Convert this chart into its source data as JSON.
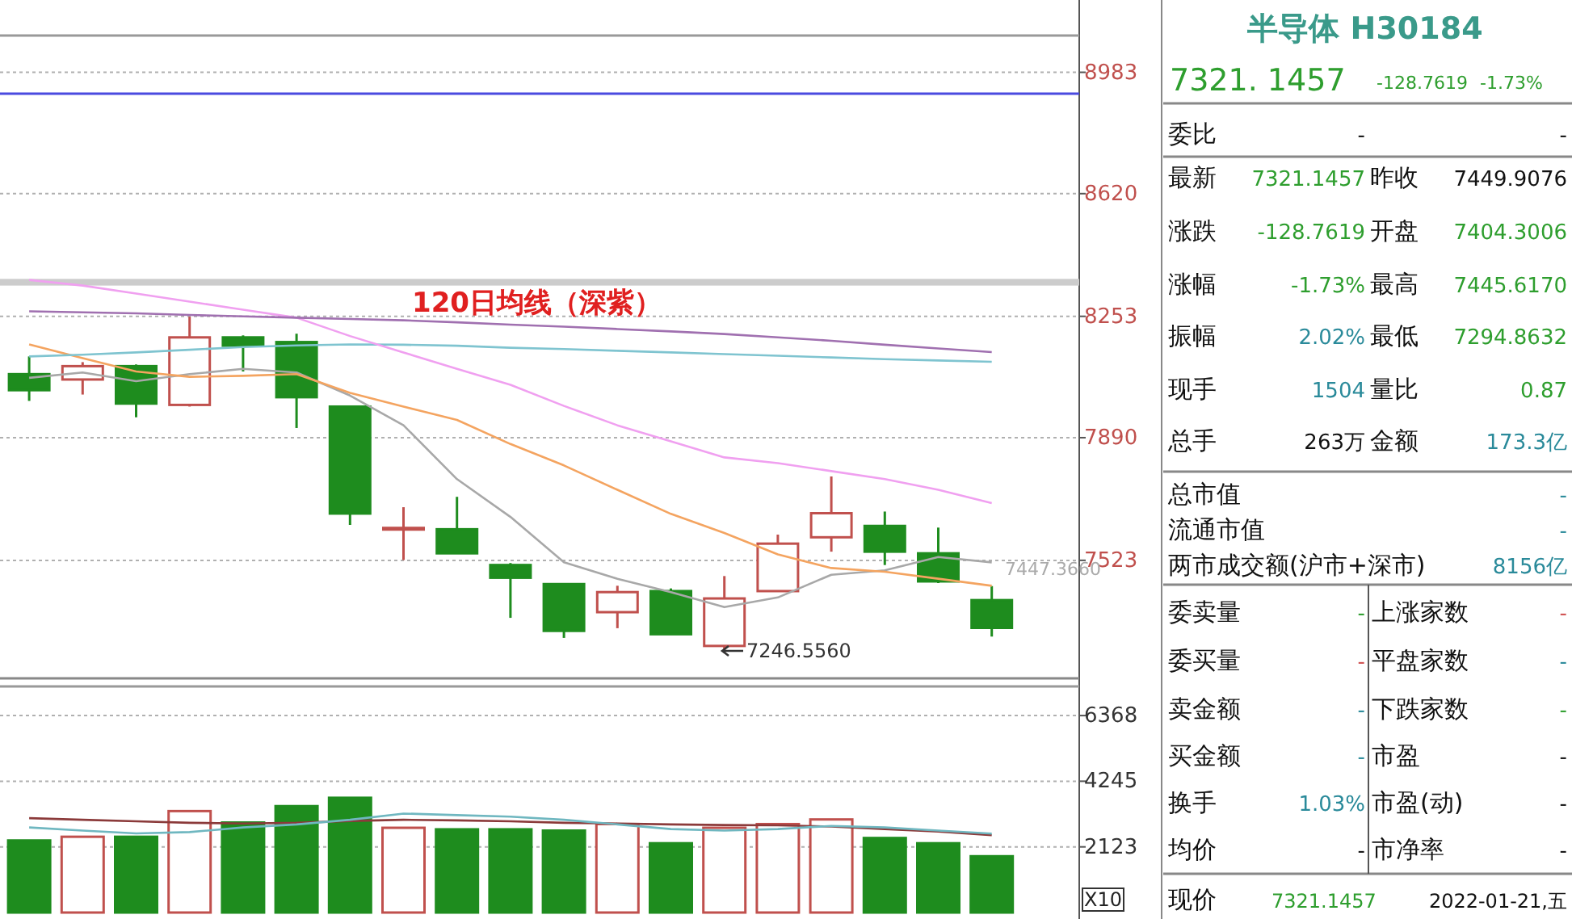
{
  "chart_data": [
    {
      "type": "candlestick",
      "categories": [
        null,
        null,
        null,
        null,
        null,
        null,
        null,
        null,
        null,
        null,
        null,
        null,
        null,
        null,
        null,
        null,
        null,
        null,
        null
      ],
      "ohlc": [
        [
          8080,
          8133,
          8000,
          8032
        ],
        [
          8064,
          8116,
          8019,
          8104
        ],
        [
          8104,
          8109,
          7951,
          7992
        ],
        [
          7988,
          8252,
          7983,
          8190
        ],
        [
          8190,
          8196,
          8088,
          8165
        ],
        [
          8176,
          8201,
          7919,
          8011
        ],
        [
          7983,
          7983,
          7629,
          7663
        ],
        [
          7618,
          7682,
          7524,
          7620
        ],
        [
          7616,
          7713,
          7542,
          7544
        ],
        [
          7509,
          7515,
          7351,
          7471
        ],
        [
          7452,
          7452,
          7291,
          7312
        ],
        [
          7368,
          7447,
          7320,
          7428
        ],
        [
          7431,
          7439,
          7302,
          7302
        ],
        [
          7267,
          7476,
          7246.556,
          7409
        ],
        [
          7431,
          7600,
          7431,
          7573
        ],
        [
          7592,
          7774,
          7549,
          7664
        ],
        [
          7626,
          7669,
          7509,
          7549
        ],
        [
          7544,
          7621,
          7455,
          7460
        ],
        [
          7404,
          7446,
          7295,
          7321
        ]
      ],
      "colors": [
        "#1e8c1e",
        "#c0504d",
        "#1e8c1e",
        "#c0504d",
        "#1e8c1e",
        "#1e8c1e",
        "#1e8c1e",
        "#c0504d",
        "#1e8c1e",
        "#1e8c1e",
        "#1e8c1e",
        "#c0504d",
        "#1e8c1e",
        "#c0504d",
        "#c0504d",
        "#c0504d",
        "#1e8c1e",
        "#1e8c1e",
        "#1e8c1e"
      ],
      "series": [
        {
          "type": "line",
          "color": "#a8a8a8",
          "values": [
            8069,
            8085,
            8059,
            8080,
            8096,
            8085,
            8016,
            7927,
            7766,
            7653,
            7517,
            7468,
            7428,
            7383,
            7412,
            7480,
            7493,
            7533,
            7517
          ]
        },
        {
          "type": "line",
          "color": "#f4a460",
          "values": [
            8169,
            8128,
            8088,
            8072,
            8075,
            8080,
            8024,
            7983,
            7943,
            7871,
            7807,
            7734,
            7662,
            7605,
            7541,
            7500,
            7489,
            7468,
            7447
          ]
        },
        {
          "type": "line",
          "color": "#7fc4d0",
          "values": [
            8133,
            8138,
            8145,
            8153,
            8161,
            8166,
            8169,
            8168,
            8165,
            8159,
            8155,
            8150,
            8145,
            8140,
            8135,
            8130,
            8125,
            8121,
            8117
          ]
        },
        {
          "type": "line",
          "color": "#f0a0f0",
          "values": [
            8362,
            8345,
            8321,
            8297,
            8273,
            8249,
            8194,
            8145,
            8096,
            8048,
            7985,
            7927,
            7879,
            7831,
            7814,
            7790,
            7766,
            7734,
            7694
          ]
        },
        {
          "type": "line",
          "color": "#a070b0",
          "values": [
            8268,
            8265,
            8262,
            8257,
            8253,
            8249,
            8245,
            8241,
            8235,
            8228,
            8222,
            8215,
            8208,
            8200,
            8190,
            8180,
            8168,
            8157,
            8146
          ]
        }
      ],
      "ylim": [
        7170,
        9093
      ],
      "yticks": [
        7523,
        7890,
        8253,
        8620,
        8983
      ],
      "grid": "y",
      "tick_labels": "y",
      "ref_lines": [
        {
          "axis": "y",
          "value": 8919,
          "color": "#4a4ae0"
        }
      ],
      "bands": [
        {
          "axis": "y",
          "from": 8345,
          "to": 8365,
          "color": "#cccccc"
        }
      ],
      "annotations": [
        "120日均线（深紫）",
        "7246.5560",
        "7447.3660"
      ]
    },
    {
      "type": "bar",
      "categories": [
        null,
        null,
        null,
        null,
        null,
        null,
        null,
        null,
        null,
        null,
        null,
        null,
        null,
        null,
        null,
        null,
        null,
        null,
        null
      ],
      "values": [
        2330,
        2450,
        2450,
        3280,
        2910,
        3440,
        3710,
        2740,
        2690,
        2690,
        2650,
        2860,
        2240,
        2740,
        2860,
        3010,
        2410,
        2240,
        1820
      ],
      "colors": [
        "#1e8c1e",
        "#c0504d",
        "#1e8c1e",
        "#c0504d",
        "#1e8c1e",
        "#1e8c1e",
        "#1e8c1e",
        "#c0504d",
        "#1e8c1e",
        "#1e8c1e",
        "#1e8c1e",
        "#c0504d",
        "#1e8c1e",
        "#c0504d",
        "#c0504d",
        "#c0504d",
        "#1e8c1e",
        "#1e8c1e",
        "#1e8c1e"
      ],
      "series": [
        {
          "type": "line",
          "color": "#8b3a3a",
          "values": [
            3050,
            3000,
            2950,
            2900,
            2880,
            2900,
            2960,
            3000,
            2980,
            2950,
            2900,
            2880,
            2850,
            2830,
            2820,
            2780,
            2700,
            2620,
            2500
          ]
        },
        {
          "type": "line",
          "color": "#6fb7c0",
          "values": [
            2750,
            2650,
            2560,
            2600,
            2750,
            2850,
            3000,
            3200,
            3150,
            3100,
            3000,
            2850,
            2700,
            2650,
            2700,
            2800,
            2750,
            2650,
            2550
          ]
        }
      ],
      "ylim": [
        0,
        7310
      ],
      "yticks": [
        2123,
        4245,
        6368
      ],
      "grid": "y",
      "tick_labels": "y",
      "annotations": [
        "X10"
      ]
    },
    {
      "type": "other",
      "title": "半导体 H30184",
      "annotations": [
        "7321. 1457",
        "-128.7619",
        "-1.73%",
        "委比",
        "-",
        "-",
        "最新",
        "7321.1457",
        "昨收",
        "7449.9076",
        "涨跌",
        "-128.7619",
        "开盘",
        "7404.3006",
        "涨幅",
        "-1.73%",
        "最高",
        "7445.6170",
        "振幅",
        "2.02%",
        "最低",
        "7294.8632",
        "现手",
        "1504",
        "量比",
        "0.87",
        "总手",
        "263万",
        "金额",
        "173.3亿",
        "总市值",
        "-",
        "流通市值",
        "-",
        "两市成交额(沪市+深市)",
        "8156亿",
        "委卖量",
        "-",
        "上涨家数",
        "-",
        "委买量",
        "-",
        "平盘家数",
        "-",
        "卖金额",
        "-",
        "下跌家数",
        "-",
        "买金额",
        "-",
        "市盈",
        "-",
        "换手",
        "1.03%",
        "市盈(动)",
        "-",
        "均价",
        "-",
        "市净率",
        "-",
        "现价",
        "7321.1457",
        "2022-01-21,五"
      ]
    }
  ]
}
